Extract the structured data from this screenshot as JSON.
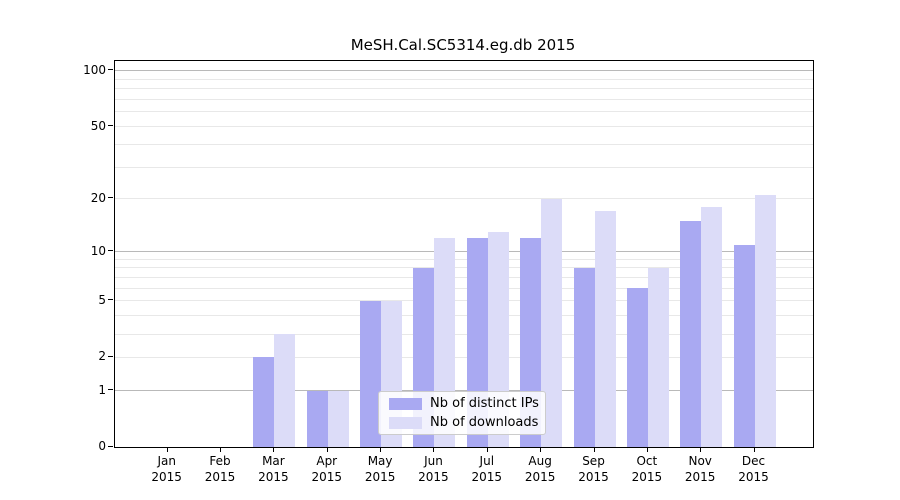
{
  "chart_data": {
    "type": "bar",
    "title": "MeSH.Cal.SC5314.eg.db 2015",
    "months": [
      "Jan",
      "Feb",
      "Mar",
      "Apr",
      "May",
      "Jun",
      "Jul",
      "Aug",
      "Sep",
      "Oct",
      "Nov",
      "Dec"
    ],
    "year": "2015",
    "series": [
      {
        "name": "Nb of distinct IPs",
        "color": "#a9a9f2",
        "values": [
          0,
          0,
          2,
          1,
          5,
          8,
          12,
          12,
          8,
          6,
          15,
          11
        ]
      },
      {
        "name": "Nb of downloads",
        "color": "#dcdcf8",
        "values": [
          0,
          0,
          3,
          1,
          5,
          12,
          13,
          20,
          17,
          8,
          18,
          21
        ]
      }
    ],
    "yticks": [
      0,
      1,
      2,
      5,
      10,
      20,
      50,
      100
    ],
    "ylim": [
      0,
      100
    ],
    "yscale": "log1p",
    "grid": "horizontal",
    "gridline_minor_values": [
      2,
      3,
      4,
      5,
      6,
      7,
      8,
      9,
      20,
      30,
      40,
      50,
      60,
      70,
      80,
      90
    ],
    "gridline_major_values": [
      1,
      10,
      100
    ],
    "legend_position": "inside-bottom-center"
  }
}
